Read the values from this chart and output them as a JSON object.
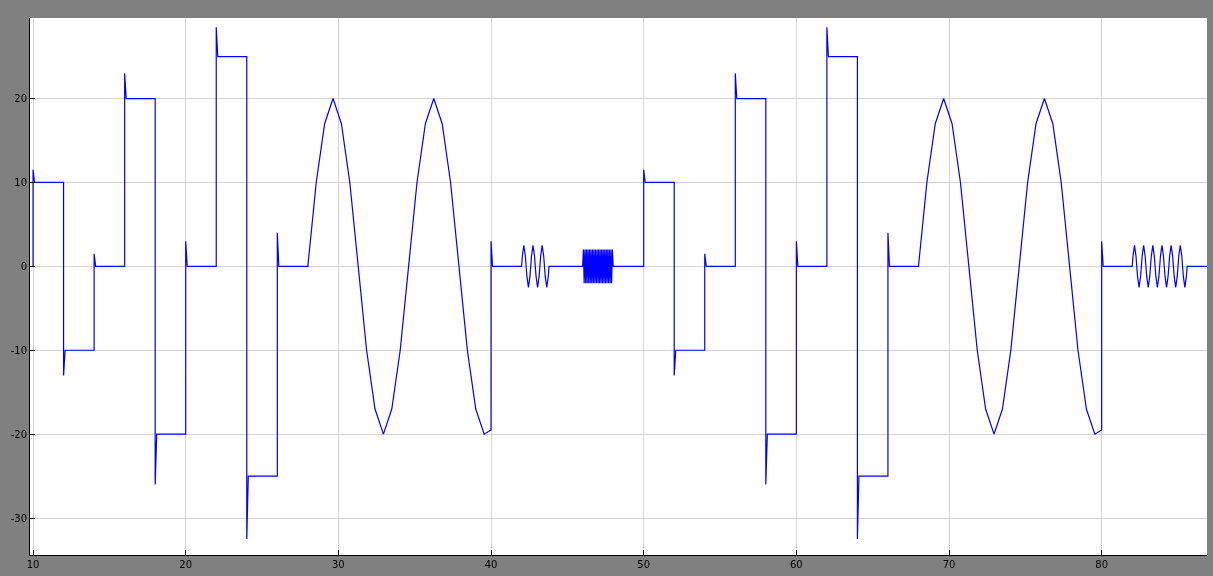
{
  "chart_data": {
    "type": "line",
    "grid": true,
    "marker": "none",
    "line_style": "solid",
    "xlim": [
      9.8,
      86.9
    ],
    "ylim": [
      -34.4,
      29.6
    ],
    "xticks": [
      10,
      20,
      30,
      40,
      50,
      60,
      70,
      80
    ],
    "yticks": [
      -30,
      -20,
      -10,
      0,
      10,
      20
    ],
    "series": [
      {
        "color": "#0000ff",
        "x": [
          10,
          10,
          10.1,
          12,
          12,
          12.1,
          14,
          14,
          14.1,
          16,
          16,
          16.1,
          18,
          18,
          18.1,
          20,
          20,
          20.1,
          22,
          22,
          22.1,
          24,
          24,
          24.1,
          26,
          26,
          26.1,
          28,
          28.55,
          29.1,
          29.65,
          30.2,
          30.75,
          31.3,
          31.85,
          32.4,
          32.95,
          33.5,
          34.05,
          34.6,
          35.15,
          35.7,
          36.25,
          36.8,
          37.35,
          37.9,
          38.45,
          39,
          39.55,
          40,
          40,
          40.1,
          42,
          42.05,
          42.15,
          42.25,
          42.35,
          42.45,
          42.55,
          42.6,
          42.65,
          42.75,
          42.85,
          42.95,
          43.05,
          43.15,
          43.2,
          43.25,
          43.35,
          43.45,
          43.55,
          43.65,
          43.75,
          43.8,
          46,
          46.05,
          46.1,
          46.15,
          46.2,
          46.25,
          46.3,
          46.35,
          46.4,
          46.45,
          46.5,
          46.55,
          46.6,
          46.65,
          46.7,
          46.75,
          46.8,
          46.85,
          46.9,
          46.95,
          47,
          47.05,
          47.1,
          47.15,
          47.2,
          47.25,
          47.3,
          47.35,
          47.4,
          47.45,
          47.5,
          47.55,
          47.6,
          47.65,
          47.7,
          47.75,
          47.8,
          47.85,
          47.9,
          47.95,
          48,
          50,
          50,
          50.1,
          52,
          52,
          52.1,
          54,
          54,
          54.1,
          56,
          56,
          56.1,
          58,
          58,
          58.1,
          60,
          60,
          60.1,
          62,
          62,
          62.1,
          64,
          64,
          64.1,
          66,
          66,
          66.1,
          68,
          68.55,
          69.1,
          69.65,
          70.2,
          70.75,
          71.3,
          71.85,
          72.4,
          72.95,
          73.5,
          74.05,
          74.6,
          75.15,
          75.7,
          76.25,
          76.8,
          77.35,
          77.9,
          78.45,
          79,
          79.55,
          80,
          80,
          80.1,
          82,
          82.05,
          82.15,
          82.25,
          82.35,
          82.45,
          82.55,
          82.6,
          82.65,
          82.75,
          82.85,
          82.95,
          83.05,
          83.15,
          83.2,
          83.25,
          83.35,
          83.45,
          83.55,
          83.65,
          83.75,
          83.8,
          83.85,
          83.95,
          84.05,
          84.15,
          84.25,
          84.35,
          84.4,
          84.45,
          84.55,
          84.65,
          84.75,
          84.85,
          84.95,
          85,
          85.05,
          85.15,
          85.25,
          85.35,
          85.45,
          85.55,
          85.6,
          86.9
        ],
        "values": [
          0,
          11.5,
          10,
          10,
          -13,
          -10,
          -10,
          1.5,
          0,
          0,
          23,
          20,
          20,
          -26,
          -20,
          -20,
          3,
          0,
          0,
          28.5,
          25,
          25,
          -32.5,
          -25,
          -25,
          4,
          0,
          0,
          10,
          17,
          20,
          17,
          10,
          0,
          -10,
          -17,
          -20,
          -17,
          -10,
          0,
          10,
          17,
          20,
          17,
          10,
          0,
          -10,
          -17,
          -20,
          -19.5,
          3,
          0,
          0,
          1.2,
          2.5,
          1.2,
          -1.2,
          -2.5,
          -1.2,
          0,
          1.2,
          2.5,
          1.2,
          -1.2,
          -2.5,
          -1.2,
          0,
          1.2,
          2.5,
          1.2,
          -1.2,
          -2.5,
          -1.2,
          0,
          0,
          2,
          -2,
          2,
          -2,
          2,
          -2,
          2,
          -2,
          2,
          -2,
          2,
          -2,
          2,
          -2,
          2,
          -2,
          2,
          -2,
          2,
          -2,
          2,
          -2,
          2,
          -2,
          2,
          -2,
          2,
          -2,
          2,
          -2,
          2,
          -2,
          2,
          -2,
          2,
          -2,
          2,
          -2,
          2,
          0,
          0,
          11.5,
          10,
          10,
          -13,
          -10,
          -10,
          1.5,
          0,
          0,
          23,
          20,
          20,
          -26,
          -20,
          -20,
          3,
          0,
          0,
          28.5,
          25,
          25,
          -32.5,
          -25,
          -25,
          4,
          0,
          0,
          10,
          17,
          20,
          17,
          10,
          0,
          -10,
          -17,
          -20,
          -17,
          -10,
          0,
          10,
          17,
          20,
          17,
          10,
          0,
          -10,
          -17,
          -20,
          -19.5,
          3,
          0,
          0,
          1.2,
          2.5,
          1.2,
          -1.2,
          -2.5,
          -1.2,
          0,
          1.2,
          2.5,
          1.2,
          -1.2,
          -2.5,
          -1.2,
          0,
          1.2,
          2.5,
          1.2,
          -1.2,
          -2.5,
          -1.2,
          0,
          1.2,
          2.5,
          1.2,
          -1.2,
          -2.5,
          -1.2,
          0,
          1.2,
          2.5,
          1.2,
          -1.2,
          -2.5,
          -1.2,
          0,
          1.2,
          2.5,
          1.2,
          -1.2,
          -2.5,
          -1.2,
          0,
          0
        ]
      }
    ]
  }
}
